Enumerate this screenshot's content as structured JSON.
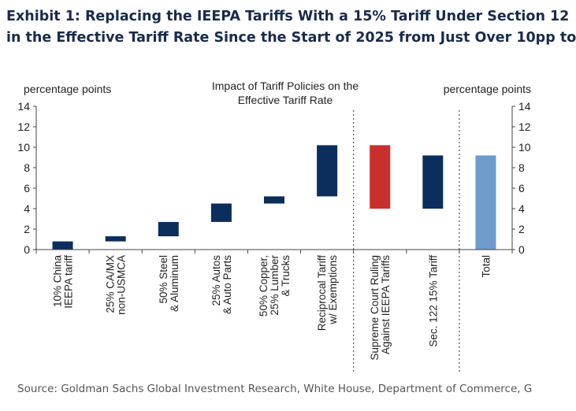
{
  "header": {
    "line1": "Exhibit 1: Replacing the IEEPA Tariffs With a 15% Tariff Under Section 12",
    "line2": "in the Effective Tariff Rate Since the Start of 2025 from Just Over 10pp to"
  },
  "footer": {
    "source": "Source: Goldman Sachs Global Investment Research, White House, Department of Commerce, G"
  },
  "chart_data": {
    "type": "waterfall",
    "title_line1": "Impact of Tariff Policies on the",
    "title_line2": "Effective Tariff Rate",
    "ylabel_left": "percentage  points",
    "ylabel_right": "percentage  points",
    "ylim": [
      0,
      14
    ],
    "yticks": [
      "0",
      "2",
      "4",
      "6",
      "8",
      "10",
      "12",
      "14"
    ],
    "colors": {
      "navy": "#0b2e5c",
      "red": "#c8302e",
      "lightblue": "#6f9ccc"
    },
    "bars": [
      {
        "label": [
          "10% China",
          "IEEPA tariff"
        ],
        "base": 0.0,
        "top": 0.8,
        "color": "navy"
      },
      {
        "label": [
          "25% CA/MX",
          "non-USMCA"
        ],
        "base": 0.8,
        "top": 1.3,
        "color": "navy"
      },
      {
        "label": [
          "50% Steel",
          "& Aluminum"
        ],
        "base": 1.3,
        "top": 2.7,
        "color": "navy"
      },
      {
        "label": [
          "25% Autos",
          "& Auto Parts"
        ],
        "base": 2.7,
        "top": 4.5,
        "color": "navy"
      },
      {
        "label": [
          "50% Copper,",
          "25% Lumber",
          "& Trucks"
        ],
        "base": 4.5,
        "top": 5.2,
        "color": "navy"
      },
      {
        "label": [
          "Reciprocal Tariff",
          "w/ Exemptions"
        ],
        "base": 5.2,
        "top": 10.2,
        "color": "navy"
      },
      {
        "label": [
          "Supreme Court Ruling",
          "Against IEEPA Tariffs"
        ],
        "base": 4.0,
        "top": 10.2,
        "color": "red"
      },
      {
        "label": [
          "Sec. 122 15% Tariff"
        ],
        "base": 4.0,
        "top": 9.2,
        "color": "navy"
      },
      {
        "label": [
          "Total"
        ],
        "base": 0.0,
        "top": 9.2,
        "color": "lightblue"
      }
    ],
    "separators_after": [
      6,
      8
    ]
  }
}
